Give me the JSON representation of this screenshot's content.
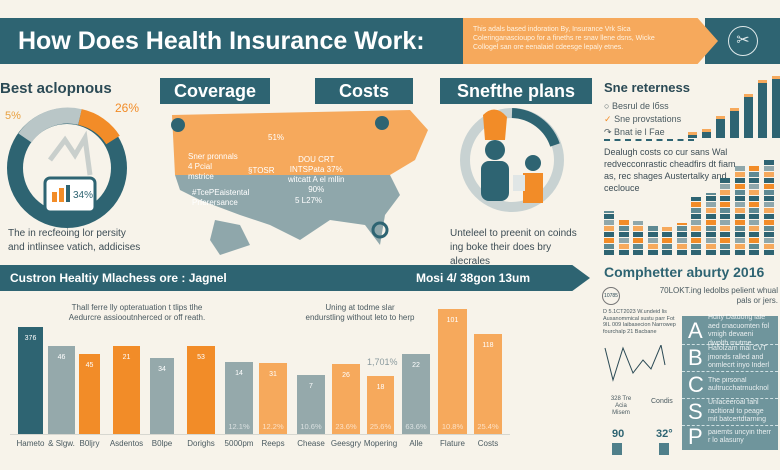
{
  "header": {
    "title": "How Does Health Insurance Work:",
    "subtitle": [
      "This adals based indoration By, Insurance Vrk Sica",
      "Coleringanascioupo for a fineths re snav llene dsns, Wicke",
      "Collogel  san ore eenalaiel cdeesge lepaly etnes."
    ],
    "icon": "scissors-circle-icon"
  },
  "colors": {
    "teal": "#2e6472",
    "orange": "#f28c28",
    "light_orange": "#f6a95c",
    "gray": "#95a9ab",
    "background": "#f7f3ea"
  },
  "left": {
    "title": "Best aclopnous",
    "pct_left": "5%",
    "pct_right": "26%",
    "pct_inner": "34%",
    "caption": "The in recfeoing lor persity and intlinsee vatich, addicises"
  },
  "sections": {
    "coverage": "Coverage",
    "costs": "Costs",
    "plans": "Snefthe plans"
  },
  "map": {
    "labels": [
      "51%",
      "Sner pronnals\n4 Pcial\nmstrice",
      "§TOSR",
      "DOU CRT\nINTSPata 37%\nwitcatt A el mllin\n90%",
      "#TcePEaistental\nPrferersance",
      "5 L27%"
    ]
  },
  "plans": {
    "caption": "Unteleel to preenit on coinds ing boke their does bry alecrales"
  },
  "right_top": {
    "title": "Sne reterness",
    "items": [
      "Besrul de lбss",
      "Sne provstations",
      "Bnat ie l Fae"
    ],
    "text": "Dealugh costs co cur sans Wal redvecconrastic cheadfirs dt fiam as, rec shages Austertalky and ceclouce",
    "small_bars": [
      6,
      9,
      22,
      30,
      44,
      58,
      62
    ],
    "stacked_bars": [
      44,
      36,
      34,
      30,
      28,
      32,
      58,
      62,
      78,
      90,
      90,
      95
    ]
  },
  "bottom_banner": {
    "left": "Custron Healtiy Mlachess ore  :  Jagnel",
    "right": "Mosi 4/ 38gon  13um"
  },
  "chart_data": {
    "type": "bar",
    "ylim": [
      0,
      100
    ],
    "annotations": [
      "Thall ferre lly opteratuation t tlips tlhe Aedurcre assiooutnherced or off reath.",
      "Uning at todme slar endurstling without leto to herp",
      "1,701%"
    ],
    "categories": [
      "Hameto",
      "& Slgw.",
      "B0ljry",
      "Asdentos",
      "B0lpe",
      "Dorighs",
      "5000pm",
      "Reeps",
      "Cheasе",
      "Geesgry",
      "Mopering",
      "Alle",
      "Flature",
      "Costs"
    ],
    "values": [
      80,
      66,
      60,
      66,
      57,
      66,
      54,
      53,
      44,
      52,
      43,
      60,
      93,
      75
    ],
    "data_labels": [
      "376",
      "46",
      "45",
      "21",
      "34",
      "53",
      "14",
      "31",
      "7",
      "26",
      "18",
      "22",
      "101",
      "118"
    ],
    "pct_labels": [
      "",
      "",
      "",
      "",
      "",
      "",
      "12.1%",
      "12.2%",
      "10.6%",
      "23.6%",
      "25.6%",
      "63.6%",
      "10.8%",
      "25.4%"
    ],
    "colors": [
      "#2e6472",
      "#95a9ab",
      "#f28c28",
      "#f28c28",
      "#95a9ab",
      "#f28c28",
      "#95a9ab",
      "#f6a95c",
      "#95a9ab",
      "#f6a95c",
      "#f6a95c",
      "#95a9ab",
      "#f6a95c",
      "#f6a95c"
    ]
  },
  "right_bottom": {
    "title": "Comphetter aburty 2016",
    "badge": "10785",
    "sub": "70LOKT.ing ledolbs pelient whual pals or  jers.",
    "notes": "D 5.1CT2023 W.undeid lis Ausanommical sustu parr Fot 9IL 009 Iaibasecion Narrowep fourchalp 21 Bacbane",
    "legend_left": "328 Tre Acia Misem",
    "legend_mid": "Condis",
    "stat1": "90",
    "stat2": "32°",
    "letters": [
      {
        "l": "A",
        "t": "Hdity Datdong iale aed cnacuomten fol vmigh devaeni dwplth mutme"
      },
      {
        "l": "B",
        "t": "Hafolzam mal CVT jmonds ralled and onmlecrt inyo Inderl"
      },
      {
        "l": "C",
        "t": "The pirsonal aultrucchatrnucknol"
      },
      {
        "l": "S",
        "t": "Unlaceeroal fahl racltioral to peage mit batcertdtarning"
      },
      {
        "l": "P",
        "t": "paiemts uncyin therr r lo alasuny"
      }
    ]
  }
}
